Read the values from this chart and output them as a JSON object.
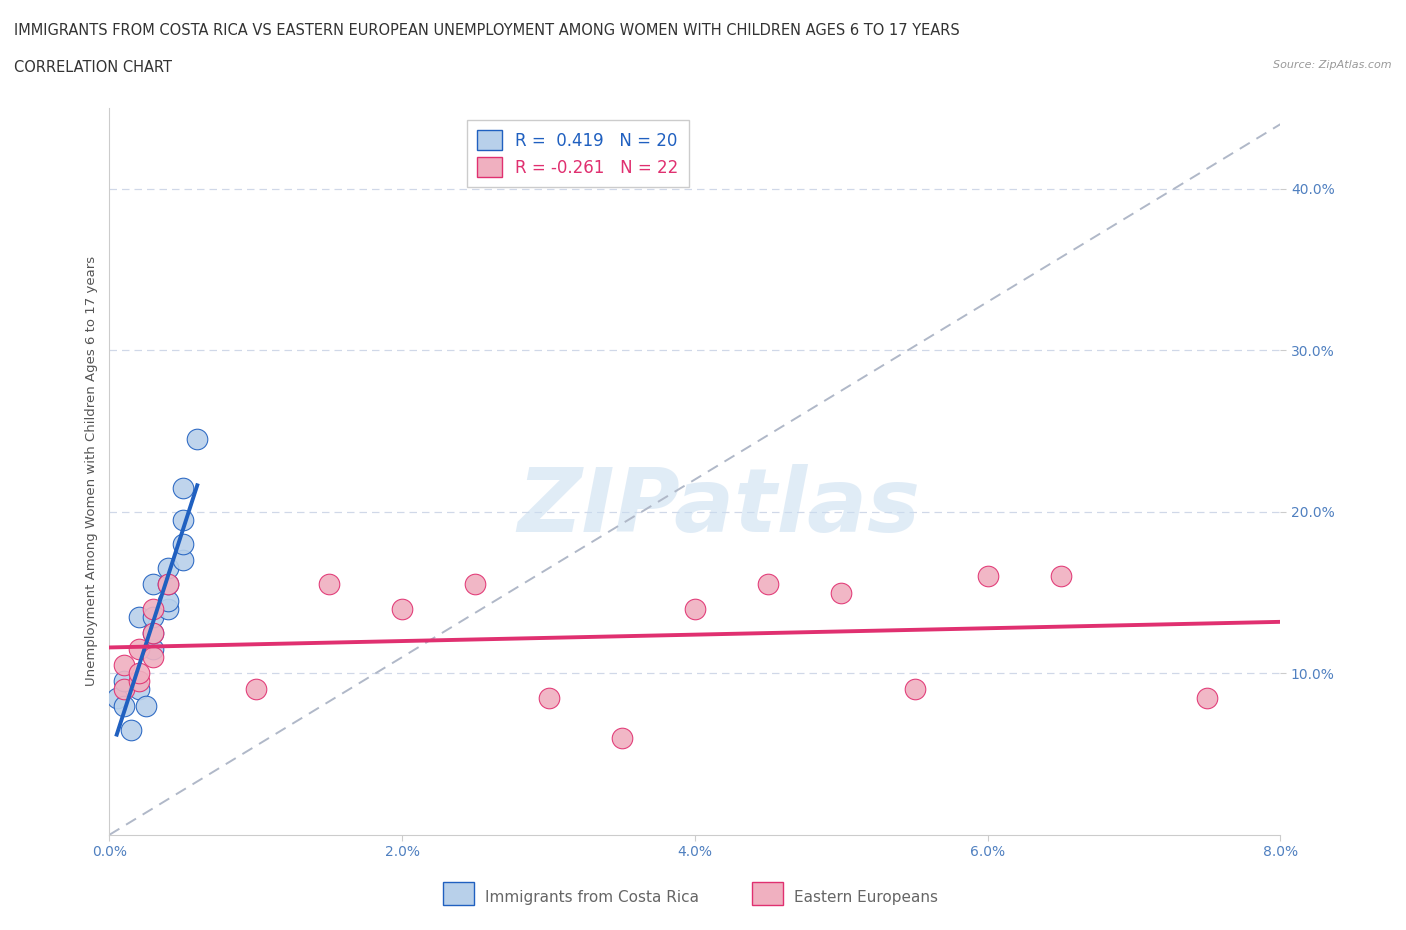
{
  "title_line1": "IMMIGRANTS FROM COSTA RICA VS EASTERN EUROPEAN UNEMPLOYMENT AMONG WOMEN WITH CHILDREN AGES 6 TO 17 YEARS",
  "title_line2": "CORRELATION CHART",
  "source": "Source: ZipAtlas.com",
  "ylabel": "Unemployment Among Women with Children Ages 6 to 17 years",
  "xlim": [
    0.0,
    0.08
  ],
  "ylim": [
    0.0,
    0.45
  ],
  "xticks": [
    0.0,
    0.02,
    0.04,
    0.06,
    0.08
  ],
  "xtick_labels": [
    "0.0%",
    "2.0%",
    "4.0%",
    "6.0%",
    "8.0%"
  ],
  "yticks": [
    0.1,
    0.2,
    0.3,
    0.4
  ],
  "ytick_labels": [
    "10.0%",
    "20.0%",
    "30.0%",
    "40.0%"
  ],
  "background_color": "#ffffff",
  "grid_color": "#d0d8e8",
  "costa_rica_color": "#b8d0ea",
  "eastern_eu_color": "#f0b0c0",
  "costa_rica_line_color": "#2060c0",
  "eastern_eu_line_color": "#e03070",
  "dashed_line_color": "#b0b8c8",
  "legend_r1_label": "R =  0.419   N = 20",
  "legend_r2_label": "R = -0.261   N = 22",
  "legend_r1_color": "#2060c0",
  "legend_r2_color": "#e03070",
  "costa_rica_x": [
    0.0005,
    0.001,
    0.001,
    0.0015,
    0.002,
    0.002,
    0.0025,
    0.003,
    0.003,
    0.003,
    0.003,
    0.004,
    0.004,
    0.004,
    0.004,
    0.005,
    0.005,
    0.005,
    0.005,
    0.006
  ],
  "costa_rica_y": [
    0.085,
    0.095,
    0.08,
    0.065,
    0.135,
    0.09,
    0.08,
    0.115,
    0.125,
    0.135,
    0.155,
    0.14,
    0.145,
    0.155,
    0.165,
    0.17,
    0.18,
    0.195,
    0.215,
    0.245
  ],
  "eastern_eu_x": [
    0.001,
    0.001,
    0.002,
    0.002,
    0.002,
    0.003,
    0.003,
    0.003,
    0.004,
    0.01,
    0.015,
    0.02,
    0.025,
    0.03,
    0.035,
    0.04,
    0.045,
    0.05,
    0.055,
    0.06,
    0.065,
    0.075
  ],
  "eastern_eu_y": [
    0.09,
    0.105,
    0.095,
    0.1,
    0.115,
    0.125,
    0.14,
    0.11,
    0.155,
    0.09,
    0.155,
    0.14,
    0.155,
    0.085,
    0.06,
    0.14,
    0.155,
    0.15,
    0.09,
    0.16,
    0.16,
    0.085
  ],
  "watermark_text": "ZIPatlas",
  "bottom_legend_cr": "Immigrants from Costa Rica",
  "bottom_legend_ee": "Eastern Europeans",
  "title_fontsize": 10.5,
  "tick_fontsize": 10,
  "ylabel_fontsize": 9.5
}
